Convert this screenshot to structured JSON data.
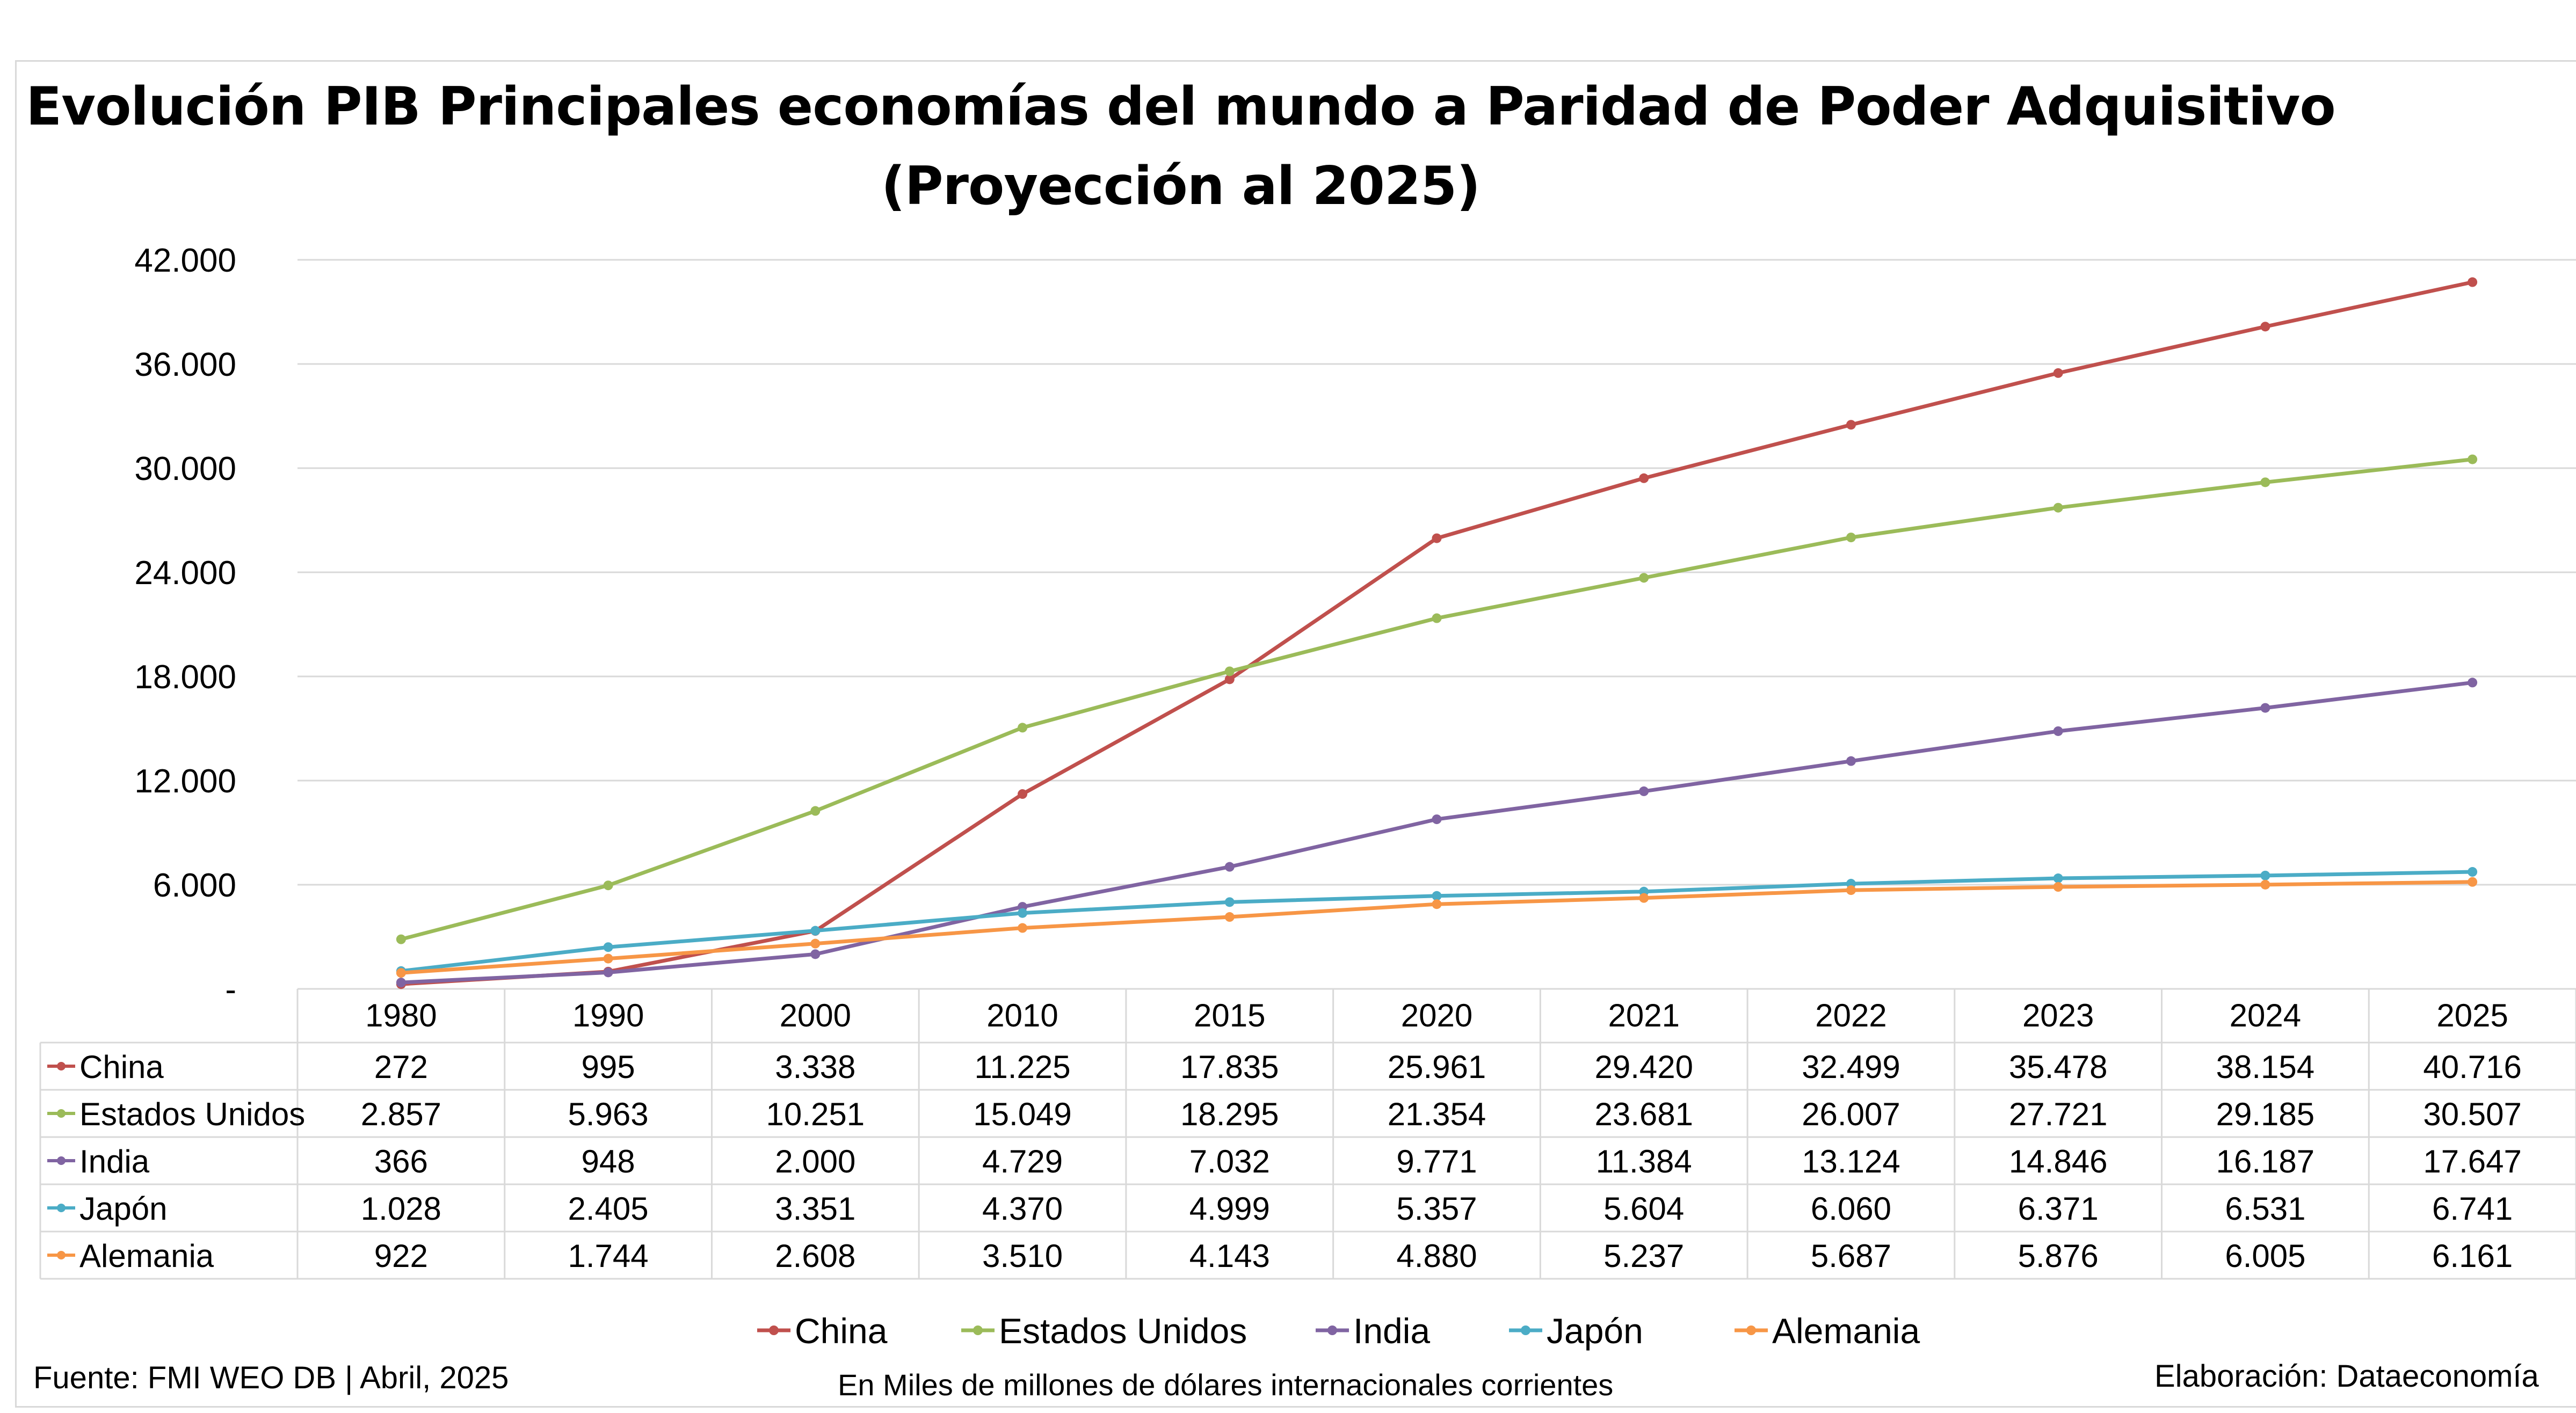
{
  "title_line1": "Evolución PIB Principales economías del mundo a Paridad de Poder Adquisitivo",
  "title_line2": "(Proyección al 2025)",
  "footer": {
    "source": "Fuente: FMI WEO DB | Abril, 2025",
    "units": "En Miles de millones de dólares internacionales corrientes",
    "credit": "Elaboración: Dataeconomía"
  },
  "chart_data": {
    "type": "line",
    "title": "Evolución PIB Principales economías del mundo a Paridad de Poder Adquisitivo (Proyección al 2025)",
    "categories": [
      "1980",
      "1990",
      "2000",
      "2010",
      "2015",
      "2020",
      "2021",
      "2022",
      "2023",
      "2024",
      "2025"
    ],
    "ylim": [
      0,
      42000
    ],
    "yticks": [
      0,
      6000,
      12000,
      18000,
      24000,
      30000,
      36000,
      42000
    ],
    "ytick_labels": [
      "-",
      "6.000",
      "12.000",
      "18.000",
      "24.000",
      "30.000",
      "36.000",
      "42.000"
    ],
    "grid": true,
    "legend_position": "bottom",
    "data_table": true,
    "series": [
      {
        "name": "China",
        "color": "#c0504d",
        "values": [
          272,
          995,
          3338,
          11225,
          17835,
          25961,
          29420,
          32499,
          35478,
          38154,
          40716
        ],
        "labels": [
          "272",
          "995",
          "3.338",
          "11.225",
          "17.835",
          "25.961",
          "29.420",
          "32.499",
          "35.478",
          "38.154",
          "40.716"
        ]
      },
      {
        "name": "Estados Unidos",
        "color": "#9bbb59",
        "values": [
          2857,
          5963,
          10251,
          15049,
          18295,
          21354,
          23681,
          26007,
          27721,
          29185,
          30507
        ],
        "labels": [
          "2.857",
          "5.963",
          "10.251",
          "15.049",
          "18.295",
          "21.354",
          "23.681",
          "26.007",
          "27.721",
          "29.185",
          "30.507"
        ]
      },
      {
        "name": "India",
        "color": "#8064a2",
        "values": [
          366,
          948,
          2000,
          4729,
          7032,
          9771,
          11384,
          13124,
          14846,
          16187,
          17647
        ],
        "labels": [
          "366",
          "948",
          "2.000",
          "4.729",
          "7.032",
          "9.771",
          "11.384",
          "13.124",
          "14.846",
          "16.187",
          "17.647"
        ]
      },
      {
        "name": "Japón",
        "color": "#4bacc6",
        "values": [
          1028,
          2405,
          3351,
          4370,
          4999,
          5357,
          5604,
          6060,
          6371,
          6531,
          6741
        ],
        "labels": [
          "1.028",
          "2.405",
          "3.351",
          "4.370",
          "4.999",
          "5.357",
          "5.604",
          "6.060",
          "6.371",
          "6.531",
          "6.741"
        ]
      },
      {
        "name": "Alemania",
        "color": "#f79646",
        "values": [
          922,
          1744,
          2608,
          3510,
          4143,
          4880,
          5237,
          5687,
          5876,
          6005,
          6161
        ],
        "labels": [
          "922",
          "1.744",
          "2.608",
          "3.510",
          "4.143",
          "4.880",
          "5.237",
          "5.687",
          "5.876",
          "6.005",
          "6.161"
        ]
      }
    ]
  }
}
